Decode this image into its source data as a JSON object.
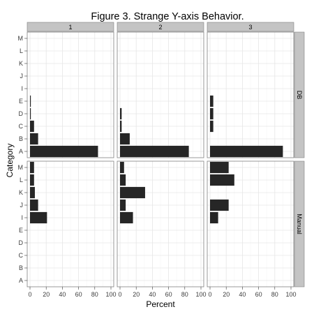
{
  "chart_data": {
    "type": "bar",
    "orientation": "horizontal",
    "title": "Figure 3. Strange Y-axis Behavior.",
    "xlabel": "Percent",
    "ylabel": "Category",
    "categories": [
      "A",
      "B",
      "C",
      "D",
      "E",
      "I",
      "J",
      "K",
      "L",
      "M"
    ],
    "xlim": [
      0,
      100
    ],
    "x_ticks": [
      0,
      20,
      40,
      60,
      80,
      100
    ],
    "x_tick_labels": [
      "0",
      "20",
      "40",
      "60",
      "80",
      "100"
    ],
    "grid": true,
    "facet_columns": [
      "1",
      "2",
      "3"
    ],
    "facet_rows": [
      "DB",
      "Manual"
    ],
    "panels": [
      {
        "column": "1",
        "row": "DB",
        "values": [
          84,
          10,
          5,
          1,
          1,
          0,
          0,
          0,
          0,
          0
        ]
      },
      {
        "column": "2",
        "row": "DB",
        "values": [
          85,
          12,
          2,
          2,
          0,
          0,
          0,
          0,
          0,
          0
        ]
      },
      {
        "column": "3",
        "row": "DB",
        "values": [
          90,
          0,
          4,
          4,
          4,
          0,
          0,
          0,
          0,
          0
        ]
      },
      {
        "column": "1",
        "row": "Manual",
        "values": [
          0,
          0,
          0,
          0,
          0,
          21,
          10,
          6,
          5,
          5
        ]
      },
      {
        "column": "2",
        "row": "Manual",
        "values": [
          0,
          0,
          0,
          0,
          0,
          16,
          7,
          31,
          7,
          5
        ]
      },
      {
        "column": "3",
        "row": "Manual",
        "values": [
          0,
          0,
          0,
          0,
          0,
          10,
          23,
          0,
          30,
          23
        ]
      }
    ],
    "colors": {
      "bar": "#262626",
      "panel_background": "#ffffff",
      "panel_border": "#7f7f7f",
      "grid_major": "#e6e6e6",
      "grid_minor": "#f3f3f3",
      "strip_fill": "#c4c4c4",
      "text": "#000000",
      "tick_text": "#3c3c3c"
    }
  }
}
